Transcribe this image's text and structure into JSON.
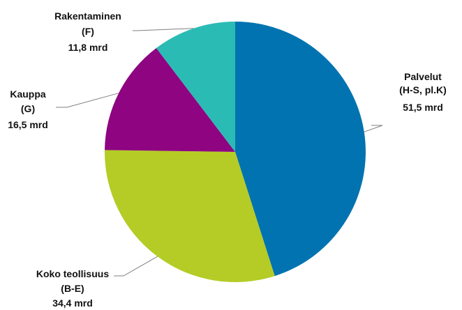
{
  "chart_data": {
    "type": "pie",
    "title": "",
    "unit": "mrd",
    "start_angle_deg": 0,
    "direction": "clockwise",
    "slices": [
      {
        "line1": "Palvelut",
        "line2": "(H-S, pl.K)",
        "value_label": "51,5 mrd",
        "value": 51.5,
        "color": "#0073b0"
      },
      {
        "line1": "Koko teollisuus",
        "line2": "(B-E)",
        "value_label": "34,4 mrd",
        "value": 34.4,
        "color": "#b4cc25"
      },
      {
        "line1": "Kauppa",
        "line2": "(G)",
        "value_label": "16,5 mrd",
        "value": 16.5,
        "color": "#8e0481"
      },
      {
        "line1": "Rakentaminen",
        "line2": "(F)",
        "value_label": "11,8 mrd",
        "value": 11.8,
        "color": "#2bbbb5"
      }
    ]
  }
}
